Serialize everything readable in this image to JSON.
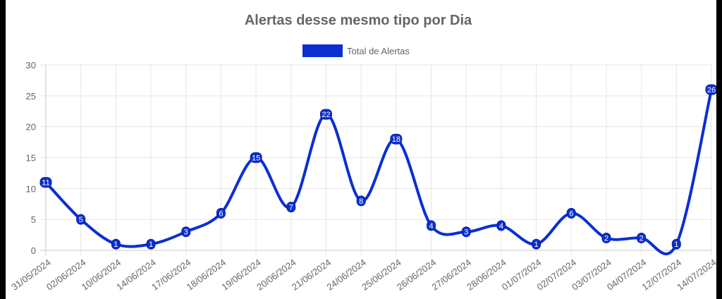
{
  "chart_data": {
    "type": "line",
    "title": "Alertas desse mesmo tipo por Dia",
    "xlabel": "",
    "ylabel": "",
    "ylim": [
      0,
      30
    ],
    "yticks": [
      0,
      5,
      10,
      15,
      20,
      25,
      30
    ],
    "grid": true,
    "legend_position": "top-center",
    "categories": [
      "31/05/2024",
      "02/06/2024",
      "10/06/2024",
      "14/06/2024",
      "17/06/2024",
      "18/06/2024",
      "19/06/2024",
      "20/06/2024",
      "21/06/2024",
      "24/06/2024",
      "25/06/2024",
      "26/06/2024",
      "27/06/2024",
      "28/06/2024",
      "01/07/2024",
      "02/07/2024",
      "03/07/2024",
      "04/07/2024",
      "12/07/2024",
      "14/07/2024"
    ],
    "series": [
      {
        "name": "Total de Alertas",
        "color": "#0a2fd1",
        "values": [
          11,
          5,
          1,
          1,
          3,
          6,
          15,
          7,
          22,
          8,
          18,
          4,
          3,
          4,
          1,
          6,
          2,
          2,
          1,
          26
        ]
      }
    ]
  }
}
